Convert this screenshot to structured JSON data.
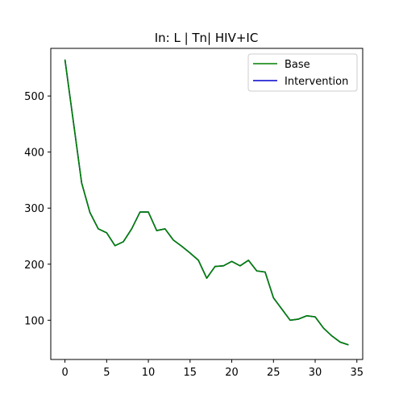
{
  "chart_data": {
    "type": "line",
    "title": "In: L | Tn| HIV+IC",
    "xlabel": "",
    "ylabel": "",
    "xlim": [
      -1.7,
      35.7
    ],
    "ylim": [
      30,
      585
    ],
    "xticks": [
      0,
      5,
      10,
      15,
      20,
      25,
      30,
      35
    ],
    "yticks": [
      100,
      200,
      300,
      400,
      500
    ],
    "grid": false,
    "legend_position": "top-right",
    "x": [
      0,
      1,
      2,
      3,
      4,
      5,
      6,
      7,
      8,
      9,
      10,
      11,
      12,
      13,
      14,
      15,
      16,
      17,
      18,
      19,
      20,
      21,
      22,
      23,
      24,
      25,
      26,
      27,
      28,
      29,
      30,
      31,
      32,
      33,
      34
    ],
    "series": [
      {
        "name": "Base",
        "color": "#008000",
        "values": [
          565,
          455,
          345,
          292,
          263,
          256,
          233,
          240,
          263,
          293,
          293,
          260,
          263,
          243,
          232,
          220,
          207,
          175,
          196,
          197,
          205,
          197,
          207,
          188,
          186,
          140,
          120,
          100,
          102,
          108,
          106,
          86,
          72,
          61,
          56
        ]
      },
      {
        "name": "Intervention",
        "color": "#0000cc",
        "values": [
          565,
          455,
          345,
          292,
          263,
          256,
          233,
          240,
          263,
          293,
          293,
          260,
          263,
          243,
          232,
          220,
          207,
          175,
          196,
          197,
          205,
          197,
          207,
          188,
          186,
          140,
          120,
          100,
          102,
          108,
          106,
          86,
          72,
          61,
          56
        ]
      }
    ]
  }
}
